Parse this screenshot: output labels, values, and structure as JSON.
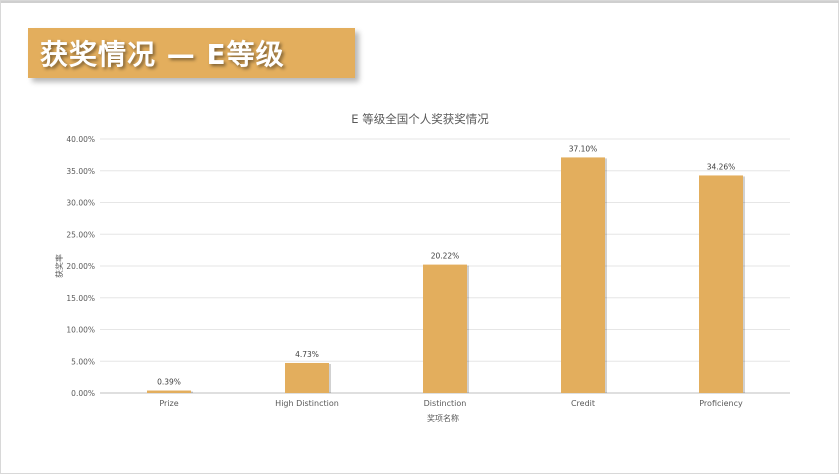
{
  "slide": {
    "heading": "获奖情况 — E等级"
  },
  "chart_data": {
    "type": "bar",
    "title": "E 等级全国个人奖获奖情况",
    "xlabel": "奖项名称",
    "ylabel": "获奖率",
    "categories": [
      "Prize",
      "High Distinction",
      "Distinction",
      "Credit",
      "Proficiency"
    ],
    "values": [
      0.39,
      4.73,
      20.22,
      37.1,
      34.26
    ],
    "data_labels": [
      "0.39%",
      "4.73%",
      "20.22%",
      "37.10%",
      "34.26%"
    ],
    "ylim": [
      0,
      40
    ],
    "yticks": [
      0,
      5,
      10,
      15,
      20,
      25,
      30,
      35,
      40
    ],
    "ytick_labels": [
      "0.00%",
      "5.00%",
      "10.00%",
      "15.00%",
      "20.00%",
      "25.00%",
      "30.00%",
      "35.00%",
      "40.00%"
    ],
    "grid": true,
    "legend": "none",
    "bar_color": "#e3ae5d",
    "grid_color": "#e6e6e6"
  }
}
